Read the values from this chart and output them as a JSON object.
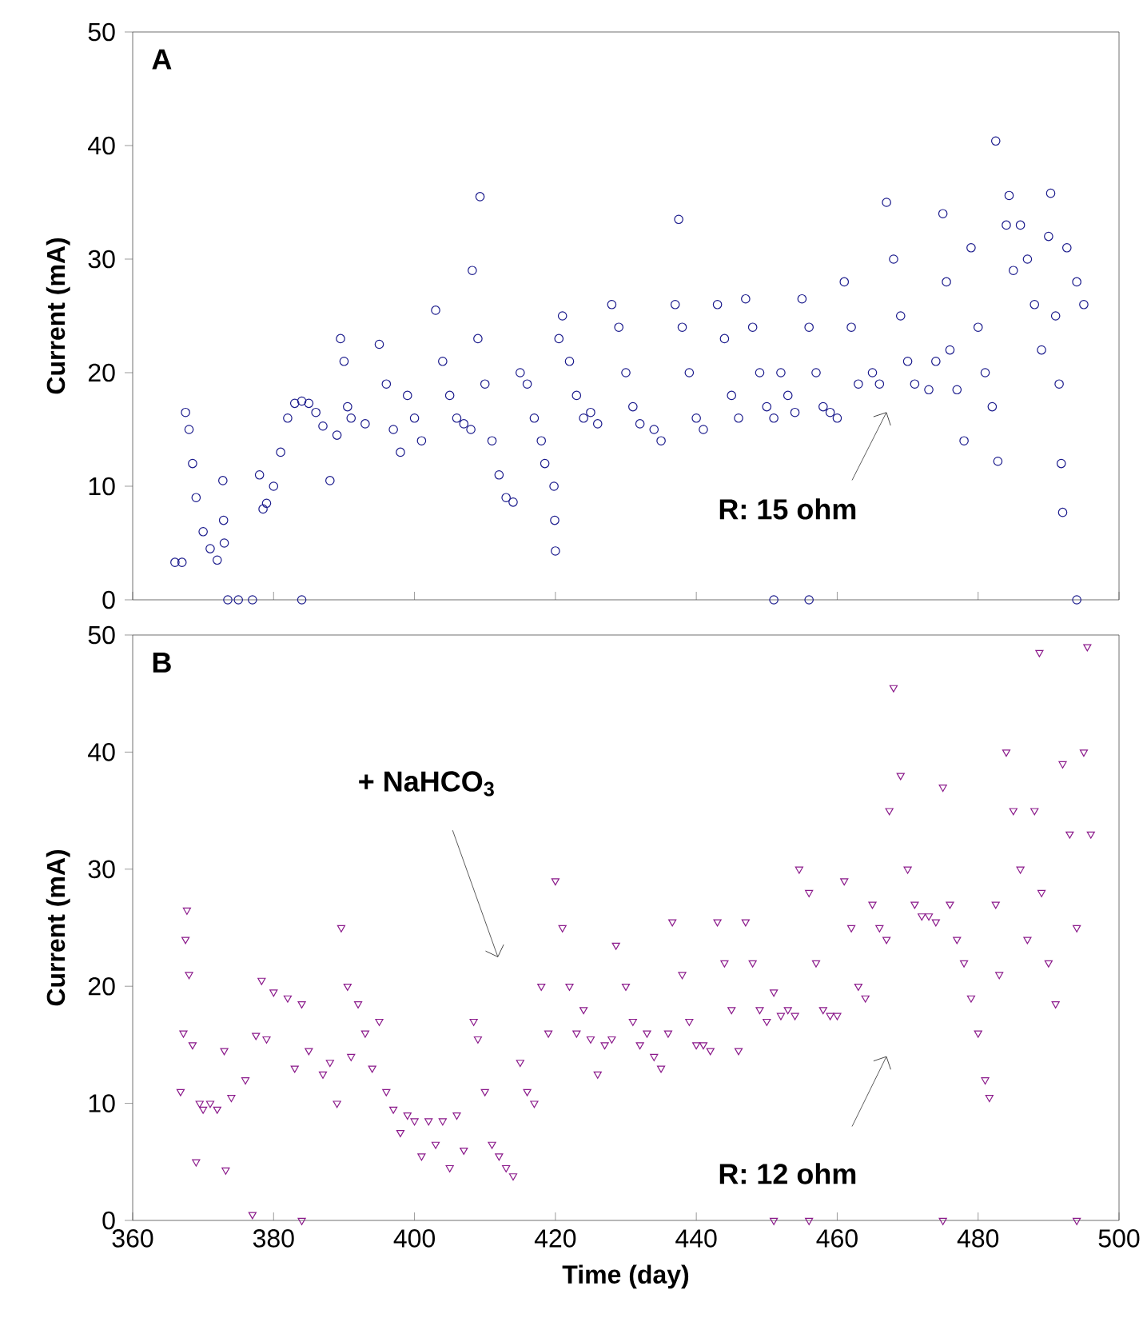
{
  "chart_data": [
    {
      "type": "scatter",
      "ylabel": "Current (mA)",
      "annotations": [
        "A",
        "R: 15 ohm"
      ],
      "color": "#1a1a8c",
      "marker": "circle",
      "tick_labels": "y",
      "xlim": [
        360,
        500
      ],
      "ylim": [
        0,
        50
      ],
      "xticks": [
        360,
        380,
        400,
        420,
        440,
        460,
        480,
        500
      ],
      "yticks": [
        0,
        10,
        20,
        30,
        40,
        50
      ],
      "x": [
        366,
        367,
        367.5,
        368,
        368.5,
        369,
        370,
        371,
        372,
        372.8,
        372.9,
        373,
        373.5,
        375,
        377,
        378,
        378.5,
        379,
        380,
        381,
        382,
        383,
        384,
        384,
        385,
        386,
        387,
        388,
        389,
        389.5,
        390,
        390.5,
        391,
        393,
        395,
        396,
        397,
        398,
        399,
        400,
        401,
        403,
        404,
        405,
        406,
        407,
        408,
        408.2,
        409,
        409.3,
        410,
        411,
        412,
        413,
        414,
        415,
        416,
        417,
        418,
        418.5,
        419.8,
        419.9,
        420,
        420.5,
        421,
        422,
        423,
        424,
        425,
        426,
        428,
        429,
        430,
        431,
        432,
        434,
        435,
        437,
        437.5,
        438,
        439,
        440,
        441,
        443,
        444,
        445,
        446,
        447,
        448,
        449,
        450,
        451,
        451,
        452,
        453,
        454,
        455,
        456,
        456,
        457,
        458,
        459,
        460,
        461,
        462,
        463,
        465,
        466,
        467,
        468,
        469,
        470,
        471,
        473,
        474,
        475,
        475.5,
        476,
        477,
        478,
        479,
        480,
        481,
        482,
        482.5,
        482.8,
        484,
        484.4,
        485,
        486,
        487,
        488,
        489,
        490,
        490.3,
        491,
        491.5,
        491.8,
        492,
        492.6,
        494,
        494,
        495
      ],
      "values": [
        3.3,
        3.3,
        16.5,
        15,
        12,
        9,
        6,
        4.5,
        3.5,
        10.5,
        7,
        5,
        0,
        0,
        0,
        11,
        8,
        8.5,
        10,
        13,
        16,
        17.3,
        17.5,
        0,
        17.3,
        16.5,
        15.3,
        10.5,
        14.5,
        23,
        21,
        17,
        16,
        15.5,
        22.5,
        19,
        15,
        13,
        18,
        16,
        14,
        25.5,
        21,
        18,
        16,
        15.5,
        15,
        29,
        23,
        35.5,
        19,
        14,
        11,
        9,
        8.6,
        20,
        19,
        16,
        14,
        12,
        10,
        7,
        4.3,
        23,
        25,
        21,
        18,
        16,
        16.5,
        15.5,
        26,
        24,
        20,
        17,
        15.5,
        15,
        14,
        26,
        33.5,
        24,
        20,
        16,
        15,
        26,
        23,
        18,
        16,
        26.5,
        24,
        20,
        17,
        16,
        0,
        20,
        18,
        16.5,
        26.5,
        24,
        0,
        20,
        17,
        16.5,
        16,
        28,
        24,
        19,
        20,
        19,
        35,
        30,
        25,
        21,
        19,
        18.5,
        21,
        34,
        28,
        22,
        18.5,
        14,
        31,
        24,
        20,
        17,
        40.4,
        12.2,
        33,
        35.6,
        29,
        33,
        30,
        26,
        22,
        32,
        35.8,
        25,
        19,
        12,
        7.7,
        31,
        28,
        0,
        26
      ]
    },
    {
      "type": "scatter",
      "xlabel": "Time (day)",
      "ylabel": "Current (mA)",
      "annotations": [
        "B",
        "+ NaHCO$_{3}$",
        "R: 12 ohm"
      ],
      "color": "#8b1a8b",
      "marker": "triangle",
      "xlim": [
        360,
        500
      ],
      "ylim": [
        0,
        50
      ],
      "xticks": [
        360,
        380,
        400,
        420,
        440,
        460,
        480,
        500
      ],
      "yticks": [
        0,
        10,
        20,
        30,
        40,
        50
      ],
      "x": [
        366.8,
        367.2,
        367.5,
        367.7,
        368,
        368.5,
        369,
        369.5,
        370,
        371,
        372,
        373,
        373.2,
        374,
        376,
        377,
        377.5,
        378.3,
        379,
        380,
        382,
        384,
        383,
        384,
        385,
        387,
        388,
        389,
        389.6,
        390.5,
        391,
        392,
        393,
        394,
        395,
        396,
        397,
        398,
        399,
        400,
        401,
        402,
        403,
        404,
        405,
        406,
        407,
        408.4,
        409,
        410,
        411,
        412,
        413,
        414,
        415,
        416,
        417,
        418,
        419,
        420,
        421,
        422,
        423,
        424,
        425,
        426,
        427,
        428,
        428.6,
        430,
        431,
        432,
        433,
        434,
        435,
        436,
        436.6,
        438,
        439,
        440,
        441,
        442,
        443,
        444,
        445,
        446,
        447,
        448,
        449,
        450,
        451,
        451,
        452,
        453,
        454,
        454.6,
        456,
        456,
        457,
        458,
        459,
        460,
        461,
        462,
        463,
        464,
        465,
        466,
        467,
        467.4,
        468,
        469,
        470,
        471,
        472,
        473,
        474,
        475,
        475,
        476,
        477,
        478,
        479,
        480,
        481,
        481.6,
        482.5,
        483,
        484,
        485,
        486,
        487,
        488,
        488.7,
        489,
        490,
        491,
        492,
        493,
        494,
        494,
        495,
        495.5,
        496
      ],
      "values": [
        11,
        16,
        24,
        26.5,
        21,
        15,
        5,
        10,
        9.5,
        10,
        9.5,
        14.5,
        4.3,
        10.5,
        12,
        0.5,
        15.8,
        20.5,
        15.5,
        19.5,
        19,
        18.5,
        13,
        0,
        14.5,
        12.5,
        13.5,
        10,
        25,
        20,
        14,
        18.5,
        16,
        13,
        17,
        11,
        9.5,
        7.5,
        9,
        8.5,
        5.5,
        8.5,
        6.5,
        8.5,
        4.5,
        9,
        6,
        17,
        15.5,
        11,
        6.5,
        5.5,
        4.5,
        3.8,
        13.5,
        11,
        10,
        20,
        16,
        29,
        25,
        20,
        16,
        18,
        15.5,
        12.5,
        15,
        15.5,
        23.5,
        20,
        17,
        15,
        16,
        14,
        13,
        16,
        25.5,
        21,
        17,
        15,
        15,
        14.5,
        25.5,
        22,
        18,
        14.5,
        25.5,
        22,
        18,
        17,
        19.5,
        0,
        17.5,
        18,
        17.5,
        30,
        28,
        0,
        22,
        18,
        17.5,
        17.5,
        29,
        25,
        20,
        19,
        27,
        25,
        24,
        35,
        45.5,
        38,
        30,
        27,
        26,
        26,
        25.5,
        37,
        0,
        27,
        24,
        22,
        19,
        16,
        12,
        10.5,
        27,
        21,
        40,
        35,
        30,
        24,
        35,
        48.5,
        28,
        22,
        18.5,
        39,
        33,
        25,
        0,
        40,
        49,
        33
      ]
    }
  ]
}
